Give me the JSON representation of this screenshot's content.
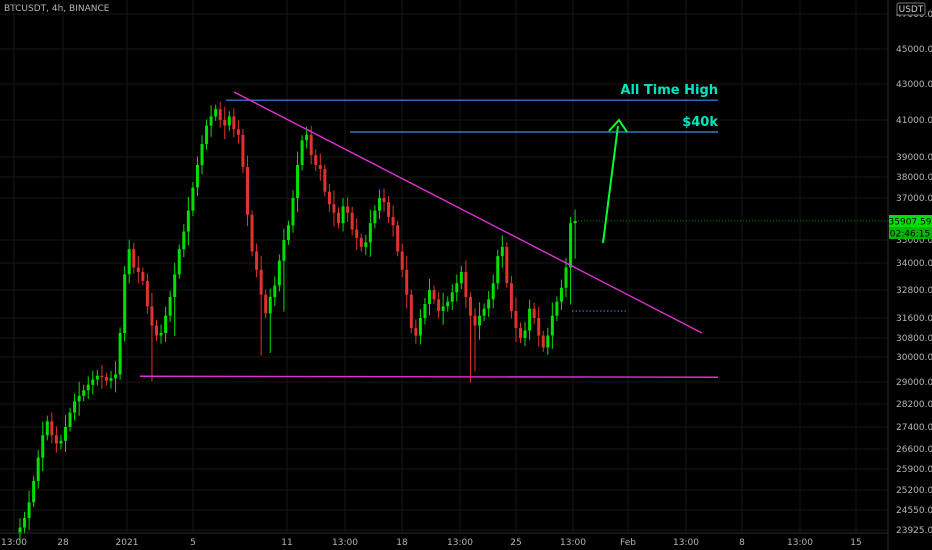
{
  "header": {
    "symbol_title": "BTCUSDT, 4h, BINANCE"
  },
  "currency_label": "USDT",
  "colors": {
    "up": "#00e000",
    "down": "#e0322e",
    "resistance": "#3d8ee8",
    "trendline": "#e030d0",
    "annotation": "#00e5c0",
    "arrow": "#00ff30",
    "price_badge": "#00e000",
    "background": "#000000"
  },
  "chart_data": {
    "type": "candlestick",
    "title": "",
    "ylim": [
      23700,
      47500
    ],
    "y_ticks": [
      23925,
      24550,
      25200,
      25900,
      26600,
      27400,
      28200,
      29000,
      30000,
      30800,
      31600,
      32800,
      34000,
      35000,
      37000,
      38000,
      39000,
      41000,
      43000,
      45000,
      47000
    ],
    "y_tick_labels": [
      "23925.00",
      "24550.00",
      "25200.00",
      "25900.00",
      "26600.00",
      "27400.00",
      "28200.00",
      "29000.00",
      "30000.00",
      "30800.00",
      "31600.00",
      "32800.00",
      "34000.00",
      "35000.00",
      "37000.00",
      "38000.00",
      "39000.00",
      "41000.00",
      "43000.00",
      "45000.00",
      "47000.00"
    ],
    "x_ticks": [
      "13:00",
      "28",
      "2021",
      "5",
      "11",
      "13:00",
      "18",
      "13:00",
      "25",
      "13:00",
      "Feb",
      "13:00",
      "8",
      "13:00",
      "15"
    ],
    "last_price": "35907.59",
    "countdown": "02:46:15",
    "closes": [
      24000,
      24300,
      24800,
      25500,
      26300,
      27100,
      27600,
      27100,
      26800,
      26900,
      27400,
      27900,
      28300,
      28500,
      28700,
      28900,
      29100,
      29250,
      29200,
      29050,
      29150,
      29300,
      31000,
      33500,
      34600,
      33800,
      33600,
      33200,
      32100,
      31300,
      30900,
      31000,
      31700,
      32500,
      33500,
      34600,
      35400,
      36400,
      37500,
      38600,
      39700,
      40700,
      41200,
      41600,
      41000,
      40700,
      41200,
      40500,
      40200,
      38500,
      36200,
      34500,
      33700,
      32600,
      31800,
      32500,
      33000,
      34100,
      35000,
      35700,
      37000,
      38600,
      39900,
      40200,
      39100,
      38600,
      38400,
      37300,
      36700,
      36300,
      35800,
      36600,
      36300,
      35500,
      35100,
      34700,
      34900,
      35800,
      36400,
      37000,
      36800,
      36100,
      35700,
      34500,
      33700,
      32600,
      31200,
      30900,
      31600,
      32200,
      32800,
      32400,
      31900,
      32100,
      32300,
      32700,
      33100,
      33600,
      32500,
      31700,
      31300,
      31700,
      32000,
      32400,
      33100,
      34300,
      34700,
      33100,
      31900,
      31200,
      30800,
      31100,
      32000,
      31600,
      30900,
      30400,
      30900,
      31700,
      32300,
      32900,
      33800,
      35800,
      35907.59
    ]
  },
  "lines": {
    "all_time_high": {
      "price": 42100,
      "label": "All Time High"
    },
    "resistance_40k": {
      "price": 40350,
      "label": "$40k"
    },
    "support": {
      "price": 29230
    },
    "trendline": {
      "from_index": 43,
      "from_price": 42100,
      "to_index": 132,
      "to_price": 30900
    },
    "breakout_dotted": {
      "price": 31900
    }
  }
}
